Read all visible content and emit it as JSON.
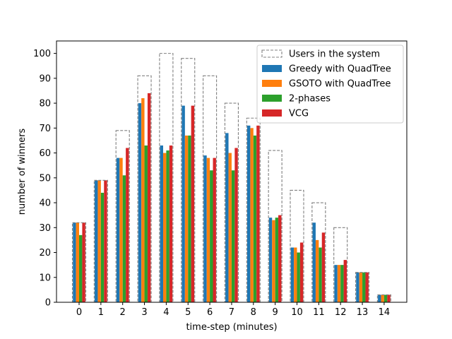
{
  "chart_data": {
    "type": "bar",
    "title": "",
    "xlabel": "time-step (minutes)",
    "ylabel": "number of winners",
    "categories": [
      "0",
      "1",
      "2",
      "3",
      "4",
      "5",
      "6",
      "7",
      "8",
      "9",
      "10",
      "11",
      "12",
      "13",
      "14"
    ],
    "ylim": [
      0,
      105
    ],
    "yticks": [
      0,
      10,
      20,
      30,
      40,
      50,
      60,
      70,
      80,
      90,
      100
    ],
    "grid": false,
    "legend_position": "top-right",
    "outline_series": {
      "name": "Users in the system",
      "style": "dashed-outline",
      "color": "#808080",
      "values": [
        32,
        49,
        69,
        91,
        100,
        98,
        91,
        80,
        74,
        61,
        45,
        40,
        30,
        12,
        3
      ]
    },
    "series": [
      {
        "name": "Greedy with QuadTree",
        "color": "#1f77b4",
        "values": [
          32,
          49,
          58,
          80,
          63,
          79,
          59,
          68,
          71,
          34,
          22,
          32,
          15,
          12,
          3
        ]
      },
      {
        "name": "GSOTO with QuadTree",
        "color": "#ff7f0e",
        "values": [
          32,
          49,
          58,
          82,
          60,
          67,
          58,
          60,
          70,
          33,
          22,
          25,
          15,
          12,
          3
        ]
      },
      {
        "name": "2-phases",
        "color": "#2ca02c",
        "values": [
          27,
          44,
          51,
          63,
          61,
          67,
          53,
          53,
          67,
          34,
          20,
          22,
          15,
          12,
          3
        ]
      },
      {
        "name": "VCG",
        "color": "#d62728",
        "values": [
          32,
          49,
          62,
          84,
          63,
          79,
          58,
          62,
          71,
          35,
          24,
          28,
          17,
          12,
          3
        ]
      }
    ]
  }
}
